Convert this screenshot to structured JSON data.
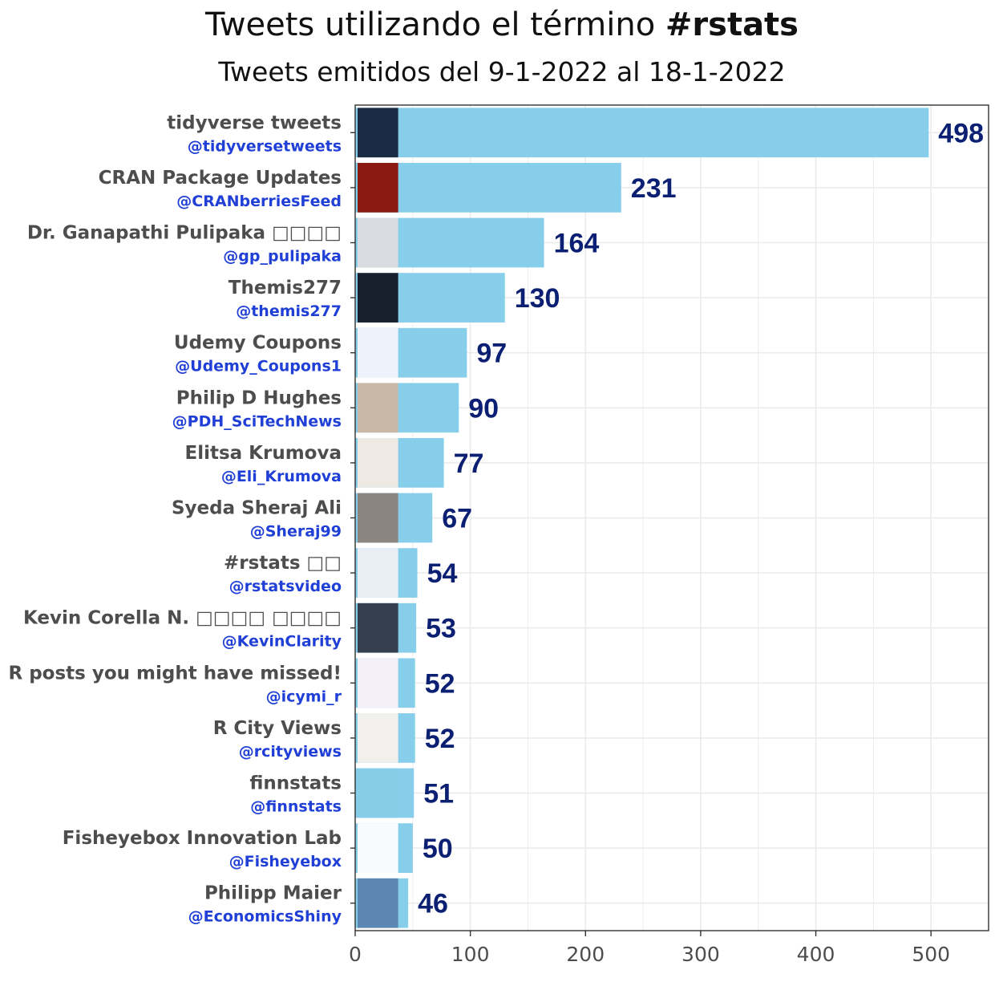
{
  "title": {
    "prefix": "Tweets utilizando el término ",
    "bold": "#rstats"
  },
  "subtitle": "Tweets emitidos del 9-1-2022 al 18-1-2022",
  "chart_data": {
    "type": "bar",
    "orientation": "horizontal",
    "title": "Tweets utilizando el término #rstats",
    "subtitle": "Tweets emitidos del 9-1-2022 al 18-1-2022",
    "categories": [
      {
        "name": "tidyverse tweets",
        "handle": "@tidyversetweets",
        "avatar": "tidyverse-hex-logo"
      },
      {
        "name": "CRAN Package Updates",
        "handle": "@CRANberriesFeed",
        "avatar": "red-berries-photo"
      },
      {
        "name": "Dr. Ganapathi Pulipaka □□□□",
        "handle": "@gp_pulipaka",
        "avatar": "man-in-suit-photo"
      },
      {
        "name": "Themis277",
        "handle": "@themis277",
        "avatar": "ms-monogram-logo"
      },
      {
        "name": "Udemy Coupons",
        "handle": "@Udemy_Coupons1",
        "avatar": "free-courses-online-logo"
      },
      {
        "name": "Philip D Hughes",
        "handle": "@PDH_SciTechNews",
        "avatar": "man-portrait-photo"
      },
      {
        "name": "Elitsa Krumova",
        "handle": "@Eli_Krumova",
        "avatar": "woman-portrait-photo"
      },
      {
        "name": "Syeda Sheraj Ali",
        "handle": "@Sheraj99",
        "avatar": "woman-street-photo"
      },
      {
        "name": "#rstats □□",
        "handle": "@rstatsvideo",
        "avatar": "r-logo"
      },
      {
        "name": "Kevin Corella N. □□□□ □□□□",
        "handle": "@KevinClarity",
        "avatar": "person-photo"
      },
      {
        "name": "R posts you might have missed!",
        "handle": "@icymi_r",
        "avatar": "r-posts-badge"
      },
      {
        "name": "R City Views",
        "handle": "@rcityviews",
        "avatar": "city-map-thumbnail"
      },
      {
        "name": "finnstats",
        "handle": "@finnstats",
        "avatar": "finnstats-logo"
      },
      {
        "name": "Fisheyebox Innovation Lab",
        "handle": "@Fisheyebox",
        "avatar": "fisheyebox-logo"
      },
      {
        "name": "Philipp Maier",
        "handle": "@EconomicsShiny",
        "avatar": "man-sunglasses-photo"
      }
    ],
    "values": [
      498,
      231,
      164,
      130,
      97,
      90,
      77,
      67,
      54,
      53,
      52,
      52,
      51,
      50,
      46
    ],
    "x_ticks": [
      0,
      100,
      200,
      300,
      400,
      500
    ],
    "xlim": [
      0,
      550
    ],
    "grid": true,
    "bar_color": "#87ceeb",
    "value_label_color": "#0b1f73",
    "handle_color": "#1f3fd6"
  }
}
